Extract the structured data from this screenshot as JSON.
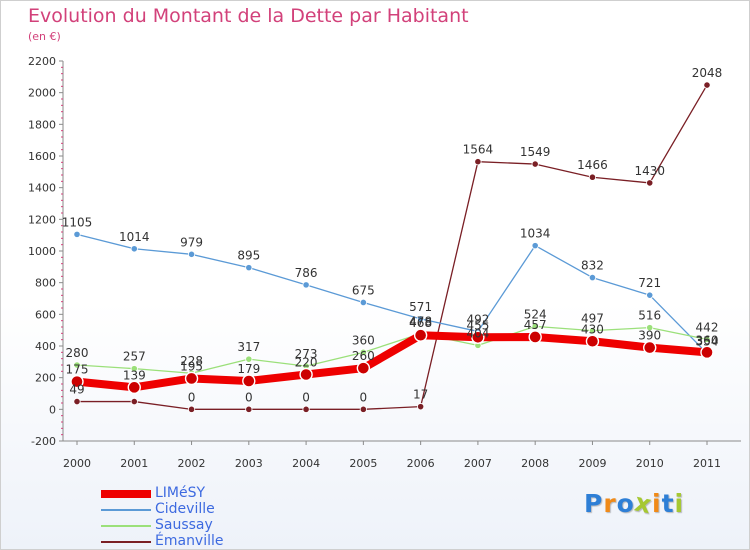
{
  "chart_data": {
    "type": "line",
    "title": "Evolution du Montant de la Dette par Habitant",
    "ylabel": "(en €)",
    "xlabel": "",
    "x": [
      "2000",
      "2001",
      "2002",
      "2003",
      "2004",
      "2005",
      "2006",
      "2007",
      "2008",
      "2009",
      "2010",
      "2011"
    ],
    "ylim": [
      -200,
      2200
    ],
    "yticks": [
      -200,
      0,
      200,
      400,
      600,
      800,
      1000,
      1200,
      1400,
      1600,
      1800,
      2000,
      2200
    ],
    "grid": false,
    "legend_position": "bottom-left",
    "series": [
      {
        "name": "Émanville",
        "color": "#7a1f25",
        "values": [
          49,
          49,
          0,
          0,
          0,
          0,
          17,
          1564,
          1549,
          1466,
          1430,
          2048
        ],
        "labels": [
          "49",
          "",
          "0",
          "0",
          "0",
          "0",
          "17",
          "1564",
          "1549",
          "1466",
          "1430",
          "2048"
        ]
      },
      {
        "name": "Cideville",
        "color": "#5b9ad6",
        "values": [
          1105,
          1014,
          979,
          895,
          786,
          675,
          571,
          492,
          1034,
          832,
          721,
          354
        ],
        "labels": [
          "1105",
          "1014",
          "979",
          "895",
          "786",
          "675",
          "571",
          "492",
          "1034",
          "832",
          "721",
          "354"
        ]
      },
      {
        "name": "Saussay",
        "color": "#9be07a",
        "values": [
          280,
          257,
          228,
          317,
          273,
          360,
          478,
          404,
          524,
          497,
          516,
          442
        ],
        "labels": [
          "280",
          "257",
          "228",
          "317",
          "273",
          "360",
          "478",
          "404",
          "524",
          "497",
          "516",
          "442"
        ]
      },
      {
        "name": "LIMéSY",
        "color": "#ee0000",
        "values": [
          175,
          139,
          195,
          179,
          220,
          260,
          468,
          455,
          457,
          430,
          390,
          360
        ],
        "labels": [
          "175",
          "139",
          "195",
          "179",
          "220",
          "260",
          "468",
          "455",
          "457",
          "430",
          "390",
          "360"
        ]
      }
    ],
    "legend": [
      "LIMéSY",
      "Cideville",
      "Saussay",
      "Émanville"
    ]
  },
  "brand": {
    "letters": [
      "P",
      "r",
      "o",
      "x",
      "i",
      "t",
      "i"
    ],
    "colors": [
      "#2e7fd6",
      "#f08a18",
      "#2e7fd6",
      "#a6c832",
      "#f08a18",
      "#2e7fd6",
      "#a6c832"
    ]
  }
}
